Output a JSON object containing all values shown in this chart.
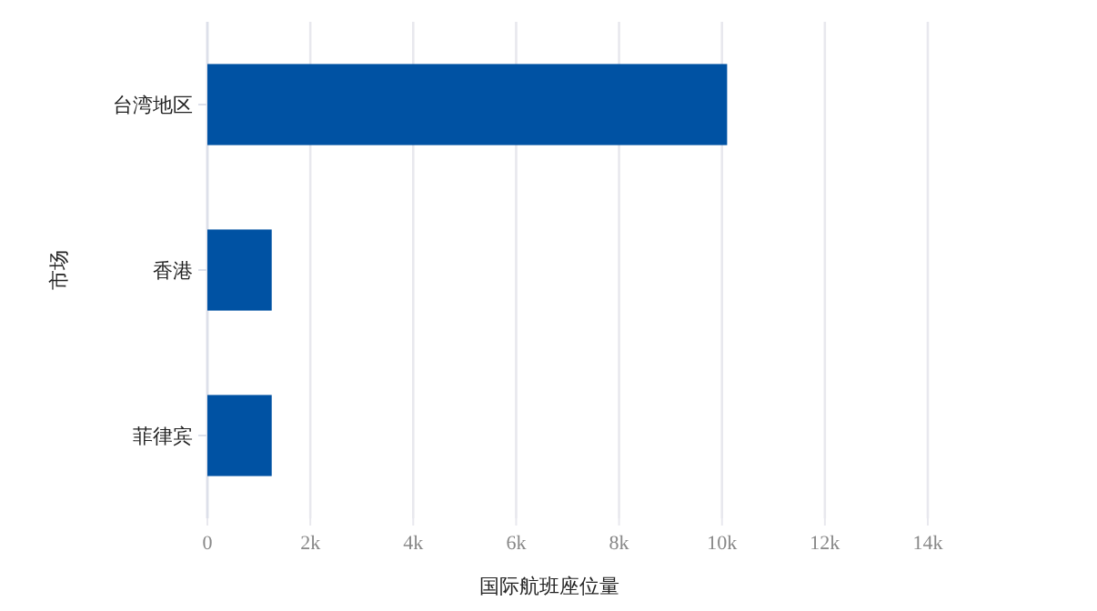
{
  "chart_data": {
    "type": "bar",
    "orientation": "horizontal",
    "xlabel": "国际航班座位量",
    "ylabel": "市场",
    "categories": [
      "台湾地区",
      "香港",
      "菲律宾"
    ],
    "values": [
      10100,
      1250,
      1250
    ],
    "color": "#0052a3",
    "xlim": [
      0,
      14000
    ],
    "xticks": [
      0,
      {
        "value": 2000,
        "label": "2k"
      },
      {
        "value": 4000,
        "label": "4k"
      },
      {
        "value": 6000,
        "label": "6k"
      },
      {
        "value": 8000,
        "label": "8k"
      },
      {
        "value": 10000,
        "label": "10k"
      },
      {
        "value": 12000,
        "label": "12k"
      },
      {
        "value": 14000,
        "label": "14k"
      }
    ],
    "grid": "x"
  }
}
